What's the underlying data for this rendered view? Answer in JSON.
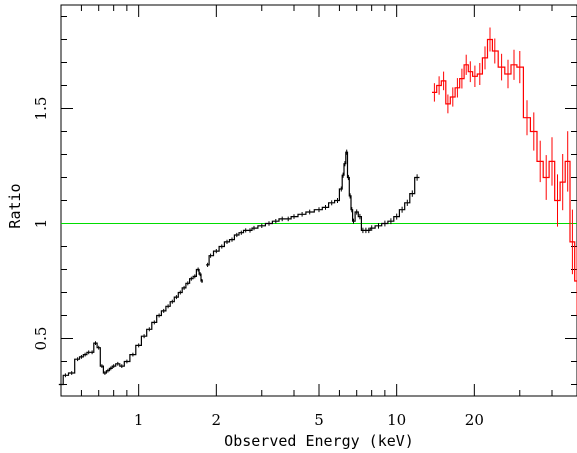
{
  "chart_data": {
    "type": "line",
    "xlabel": "Observed Energy (keV)",
    "ylabel": "Ratio",
    "xscale": "log",
    "xlim": [
      0.5,
      50
    ],
    "ylim": [
      0.25,
      1.95
    ],
    "x_ticks_labeled": [
      "1",
      "2",
      "5",
      "10",
      "20"
    ],
    "y_ticks_labeled": [
      "0.5",
      "1",
      "1.5"
    ],
    "reference_line": {
      "y": 1.0,
      "color": "#00dd00"
    },
    "series": [
      {
        "color": "#000000",
        "style": "step-with-errorbars",
        "segments": [
          {
            "x": [
              0.5,
              0.52,
              0.55,
              0.58,
              0.6,
              0.62,
              0.64,
              0.66,
              0.68,
              0.7,
              0.72,
              0.74,
              0.76,
              0.78,
              0.8,
              0.83,
              0.86,
              0.9,
              0.95,
              1.0,
              1.05,
              1.1,
              1.15,
              1.2,
              1.25,
              1.3,
              1.35,
              1.4,
              1.45,
              1.5,
              1.55,
              1.6,
              1.65,
              1.7,
              1.73,
              1.76
            ],
            "y": [
              0.3,
              0.34,
              0.35,
              0.41,
              0.42,
              0.43,
              0.44,
              0.44,
              0.48,
              0.46,
              0.38,
              0.35,
              0.36,
              0.37,
              0.38,
              0.39,
              0.38,
              0.4,
              0.43,
              0.47,
              0.51,
              0.54,
              0.57,
              0.6,
              0.62,
              0.64,
              0.66,
              0.68,
              0.7,
              0.72,
              0.74,
              0.76,
              0.77,
              0.8,
              0.78,
              0.75
            ]
          },
          {
            "x": [
              1.85,
              1.9,
              2.0,
              2.1,
              2.2,
              2.3,
              2.4,
              2.5,
              2.6,
              2.7,
              2.8,
              3.0,
              3.2,
              3.4,
              3.6,
              3.8,
              4.0,
              4.3,
              4.6,
              5.0,
              5.3,
              5.6,
              5.9,
              6.1,
              6.2,
              6.3,
              6.4,
              6.5,
              6.6,
              6.7,
              6.8,
              7.0,
              7.2,
              7.4,
              7.6,
              7.8,
              8.0,
              8.5,
              9.0,
              9.5,
              10.0,
              10.5,
              11.0,
              11.5,
              12.0
            ],
            "y": [
              0.82,
              0.86,
              0.88,
              0.9,
              0.92,
              0.93,
              0.95,
              0.96,
              0.97,
              0.97,
              0.98,
              0.99,
              1.0,
              1.01,
              1.02,
              1.02,
              1.03,
              1.04,
              1.05,
              1.06,
              1.07,
              1.09,
              1.1,
              1.15,
              1.21,
              1.26,
              1.31,
              1.2,
              1.12,
              1.06,
              1.01,
              1.05,
              1.03,
              0.97,
              0.97,
              0.97,
              0.98,
              0.99,
              1.0,
              1.01,
              1.03,
              1.06,
              1.09,
              1.13,
              1.2
            ]
          }
        ]
      },
      {
        "color": "#ff0000",
        "style": "step-with-errorbars",
        "segments": [
          {
            "x": [
              14.0,
              14.6,
              15.2,
              15.8,
              16.5,
              17.2,
              17.9,
              18.6,
              19.3,
              20.1,
              21.0,
              22.0,
              23.0,
              24.0,
              25.5,
              27.0,
              28.5,
              30.0,
              32.0,
              34.0,
              36.0,
              38.0,
              40.0,
              42.0,
              44.0,
              46.0,
              48.0,
              50.0
            ],
            "y": [
              1.57,
              1.6,
              1.62,
              1.52,
              1.55,
              1.59,
              1.63,
              1.69,
              1.66,
              1.64,
              1.65,
              1.72,
              1.8,
              1.75,
              1.68,
              1.65,
              1.69,
              1.68,
              1.46,
              1.4,
              1.27,
              1.2,
              1.27,
              1.1,
              1.18,
              1.27,
              0.92,
              0.75
            ]
          }
        ]
      }
    ],
    "grid": false,
    "legend": "none"
  }
}
